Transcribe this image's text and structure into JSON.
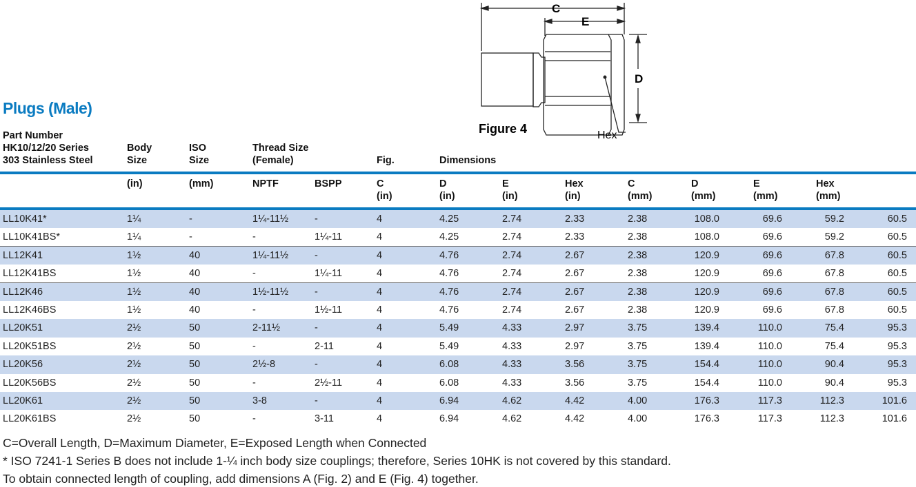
{
  "title": "Plugs (Male)",
  "figure": {
    "label": "Figure 4",
    "dims": {
      "c": "C",
      "e": "E",
      "d": "D",
      "hex": "Hex"
    }
  },
  "header": {
    "part": [
      "Part Number",
      "HK10/12/20 Series",
      "303 Stainless Steel"
    ],
    "body": [
      "Body",
      "Size"
    ],
    "iso": [
      "ISO",
      "Size"
    ],
    "thread": [
      "Thread Size",
      "(Female)"
    ],
    "fig": "Fig.",
    "dimensions": "Dimensions",
    "sub": [
      {
        "l1": "(in)",
        "l2": ""
      },
      {
        "l1": "(mm)",
        "l2": ""
      },
      {
        "l1": "NPTF",
        "l2": ""
      },
      {
        "l1": "BSPP",
        "l2": ""
      },
      {
        "l1": "C",
        "l2": "(in)"
      },
      {
        "l1": "D",
        "l2": "(in)"
      },
      {
        "l1": "E",
        "l2": "(in)"
      },
      {
        "l1": "Hex",
        "l2": "(in)"
      },
      {
        "l1": "C",
        "l2": "(mm)"
      },
      {
        "l1": "D",
        "l2": "(mm)"
      },
      {
        "l1": "E",
        "l2": "(mm)"
      },
      {
        "l1": "Hex",
        "l2": "(mm)"
      }
    ]
  },
  "rows": [
    [
      "LL10K41*",
      "1¼",
      "-",
      "1¼-11½",
      "-",
      "4",
      "4.25",
      "2.74",
      "2.33",
      "2.38",
      "108.0",
      "69.6",
      "59.2",
      "60.5"
    ],
    [
      "LL10K41BS*",
      "1¼",
      "-",
      "-",
      "1¼-11",
      "4",
      "4.25",
      "2.74",
      "2.33",
      "2.38",
      "108.0",
      "69.6",
      "59.2",
      "60.5"
    ],
    [
      "LL12K41",
      "1½",
      "40",
      "1¼-11½",
      "-",
      "4",
      "4.76",
      "2.74",
      "2.67",
      "2.38",
      "120.9",
      "69.6",
      "67.8",
      "60.5"
    ],
    [
      "LL12K41BS",
      "1½",
      "40",
      "-",
      "1¼-11",
      "4",
      "4.76",
      "2.74",
      "2.67",
      "2.38",
      "120.9",
      "69.6",
      "67.8",
      "60.5"
    ],
    [
      "LL12K46",
      "1½",
      "40",
      "1½-11½",
      "-",
      "4",
      "4.76",
      "2.74",
      "2.67",
      "2.38",
      "120.9",
      "69.6",
      "67.8",
      "60.5"
    ],
    [
      "LL12K46BS",
      "1½",
      "40",
      "-",
      "1½-11",
      "4",
      "4.76",
      "2.74",
      "2.67",
      "2.38",
      "120.9",
      "69.6",
      "67.8",
      "60.5"
    ],
    [
      "LL20K51",
      "2½",
      "50",
      "2-11½",
      "-",
      "4",
      "5.49",
      "4.33",
      "2.97",
      "3.75",
      "139.4",
      "110.0",
      "75.4",
      "95.3"
    ],
    [
      "LL20K51BS",
      "2½",
      "50",
      "-",
      "2-11",
      "4",
      "5.49",
      "4.33",
      "2.97",
      "3.75",
      "139.4",
      "110.0",
      "75.4",
      "95.3"
    ],
    [
      "LL20K56",
      "2½",
      "50",
      "2½-8",
      "-",
      "4",
      "6.08",
      "4.33",
      "3.56",
      "3.75",
      "154.4",
      "110.0",
      "90.4",
      "95.3"
    ],
    [
      "LL20K56BS",
      "2½",
      "50",
      "-",
      "2½-11",
      "4",
      "6.08",
      "4.33",
      "3.56",
      "3.75",
      "154.4",
      "110.0",
      "90.4",
      "95.3"
    ],
    [
      "LL20K61",
      "2½",
      "50",
      "3-8",
      "-",
      "4",
      "6.94",
      "4.62",
      "4.42",
      "4.00",
      "176.3",
      "117.3",
      "112.3",
      "101.6"
    ],
    [
      "LL20K61BS",
      "2½",
      "50",
      "-",
      "3-11",
      "4",
      "6.94",
      "4.62",
      "4.42",
      "4.00",
      "176.3",
      "117.3",
      "112.3",
      "101.6"
    ]
  ],
  "notes": [
    "C=Overall Length, D=Maximum Diameter, E=Exposed Length when Connected",
    "* ISO 7241-1 Series B does not include 1-¼ inch body size couplings; therefore, Series 10HK is not covered by this standard.",
    "To obtain connected length of coupling, add dimensions A (Fig. 2) and E (Fig. 4)  together."
  ],
  "colors": {
    "accent": "#0a7bc1",
    "row_alt": "#c9d8ee"
  }
}
